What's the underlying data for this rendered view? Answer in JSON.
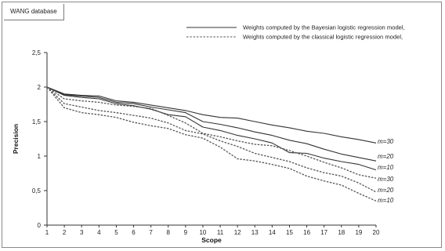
{
  "panel_label": "WANG database",
  "chart_data": {
    "type": "line",
    "xlabel": "Scope",
    "ylabel": "Precision",
    "x": [
      1,
      2,
      3,
      4,
      5,
      6,
      7,
      8,
      9,
      10,
      11,
      12,
      13,
      14,
      15,
      16,
      17,
      18,
      19,
      20
    ],
    "xlim": [
      1,
      20
    ],
    "ylim": [
      0,
      2.5
    ],
    "yticks": [
      "0",
      "0,5",
      "1",
      "1,5",
      "2",
      "2,5"
    ],
    "grid": false,
    "legend": [
      {
        "label": "Weights computed by the Bayesian logistic regression model,",
        "style": "solid"
      },
      {
        "label": "Weights computed by the classical logistic regression model,",
        "style": "dashed"
      }
    ],
    "series": [
      {
        "name": "m=30",
        "style": "solid",
        "values": [
          2.0,
          1.9,
          1.88,
          1.87,
          1.8,
          1.78,
          1.74,
          1.7,
          1.66,
          1.6,
          1.56,
          1.55,
          1.5,
          1.45,
          1.41,
          1.36,
          1.33,
          1.28,
          1.24,
          1.19
        ]
      },
      {
        "name": "m=20",
        "style": "solid",
        "values": [
          2.0,
          1.89,
          1.87,
          1.85,
          1.78,
          1.76,
          1.71,
          1.67,
          1.63,
          1.5,
          1.46,
          1.41,
          1.35,
          1.3,
          1.23,
          1.18,
          1.1,
          1.03,
          0.98,
          0.93
        ]
      },
      {
        "name": "m=10",
        "style": "solid",
        "values": [
          2.0,
          1.88,
          1.85,
          1.83,
          1.76,
          1.73,
          1.68,
          1.6,
          1.57,
          1.42,
          1.37,
          1.3,
          1.25,
          1.19,
          1.05,
          1.04,
          0.97,
          0.92,
          0.88,
          0.8
        ]
      },
      {
        "name": "m=30",
        "style": "dashed",
        "values": [
          2.0,
          1.83,
          1.8,
          1.78,
          1.74,
          1.72,
          1.69,
          1.59,
          1.48,
          1.33,
          1.28,
          1.22,
          1.17,
          1.15,
          1.08,
          1.0,
          0.91,
          0.83,
          0.73,
          0.68
        ]
      },
      {
        "name": "m=20",
        "style": "dashed",
        "values": [
          2.0,
          1.76,
          1.71,
          1.66,
          1.63,
          1.59,
          1.55,
          1.48,
          1.37,
          1.32,
          1.22,
          1.14,
          1.04,
          0.98,
          0.92,
          0.83,
          0.76,
          0.71,
          0.61,
          0.48
        ]
      },
      {
        "name": "m=10",
        "style": "dashed",
        "values": [
          2.0,
          1.7,
          1.63,
          1.6,
          1.56,
          1.49,
          1.44,
          1.4,
          1.31,
          1.26,
          1.13,
          0.96,
          0.93,
          0.88,
          0.82,
          0.71,
          0.64,
          0.58,
          0.46,
          0.35
        ]
      }
    ]
  }
}
